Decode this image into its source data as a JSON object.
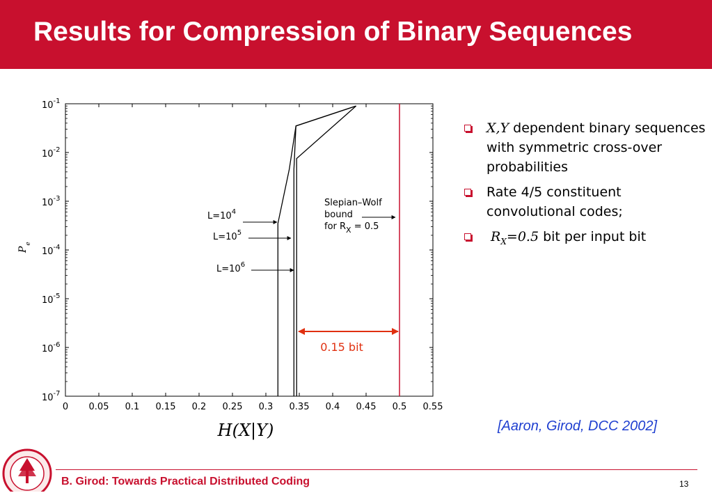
{
  "slide": {
    "title": "Results for Compression of Binary Sequences",
    "footer": "B. Girod: Towards Practical Distributed Coding",
    "page_number": "13",
    "citation": "[Aaron, Girod, DCC 2002]",
    "accent_color": "#c8102e",
    "citation_color": "#1f3fd0"
  },
  "bullets": [
    {
      "math": "X,Y",
      "text": " dependent binary sequences with symmetric cross-over probabilities"
    },
    {
      "math": "",
      "text": "Rate 4/5 constituent convolutional codes;"
    },
    {
      "math": "R",
      "sub": "X",
      "math2": "=0.5",
      "text": " bit per input bit"
    }
  ],
  "chart_data": {
    "type": "line",
    "xlabel": "H(X|Y)",
    "ylabel": "P",
    "ylabel_sub": "e",
    "xlim": [
      0,
      0.55
    ],
    "ylim": [
      1e-07,
      0.1
    ],
    "yscale": "log",
    "x_ticks": [
      "0",
      "0.05",
      "0.1",
      "0.15",
      "0.2",
      "0.25",
      "0.3",
      "0.35",
      "0.4",
      "0.45",
      "0.5",
      "0.55"
    ],
    "y_ticks": [
      {
        "base": "10",
        "exp": "-1"
      },
      {
        "base": "10",
        "exp": "-2"
      },
      {
        "base": "10",
        "exp": "-3"
      },
      {
        "base": "10",
        "exp": "-4"
      },
      {
        "base": "10",
        "exp": "-5"
      },
      {
        "base": "10",
        "exp": "-6"
      },
      {
        "base": "10",
        "exp": "-7"
      }
    ],
    "series": [
      {
        "name": "L=10^4",
        "points": [
          [
            0.318,
            1e-07
          ],
          [
            0.318,
            0.00035
          ],
          [
            0.335,
            0.0045
          ],
          [
            0.345,
            0.035
          ],
          [
            0.435,
            0.09
          ]
        ]
      },
      {
        "name": "L=10^5",
        "points": [
          [
            0.342,
            1e-07
          ],
          [
            0.342,
            0.0045
          ],
          [
            0.345,
            0.035
          ],
          [
            0.435,
            0.09
          ]
        ]
      },
      {
        "name": "L=10^6",
        "points": [
          [
            0.346,
            1e-07
          ],
          [
            0.346,
            0.0075
          ],
          [
            0.435,
            0.09
          ]
        ]
      }
    ],
    "vline": {
      "x": 0.5,
      "color": "#c8102e"
    },
    "annotations": {
      "sw_line1": "Slepian–Wolf",
      "sw_line2": "bound",
      "sw_line3_pre": "for R",
      "sw_line3_sub": "X",
      "sw_line3_post": " = 0.5",
      "gap": "0.15 bit",
      "gap_x": [
        0.347,
        0.5
      ],
      "label_L4_base": "L=10",
      "label_L4_exp": "4",
      "label_L5_base": "L=10",
      "label_L5_exp": "5",
      "label_L6_base": "L=10",
      "label_L6_exp": "6"
    }
  }
}
